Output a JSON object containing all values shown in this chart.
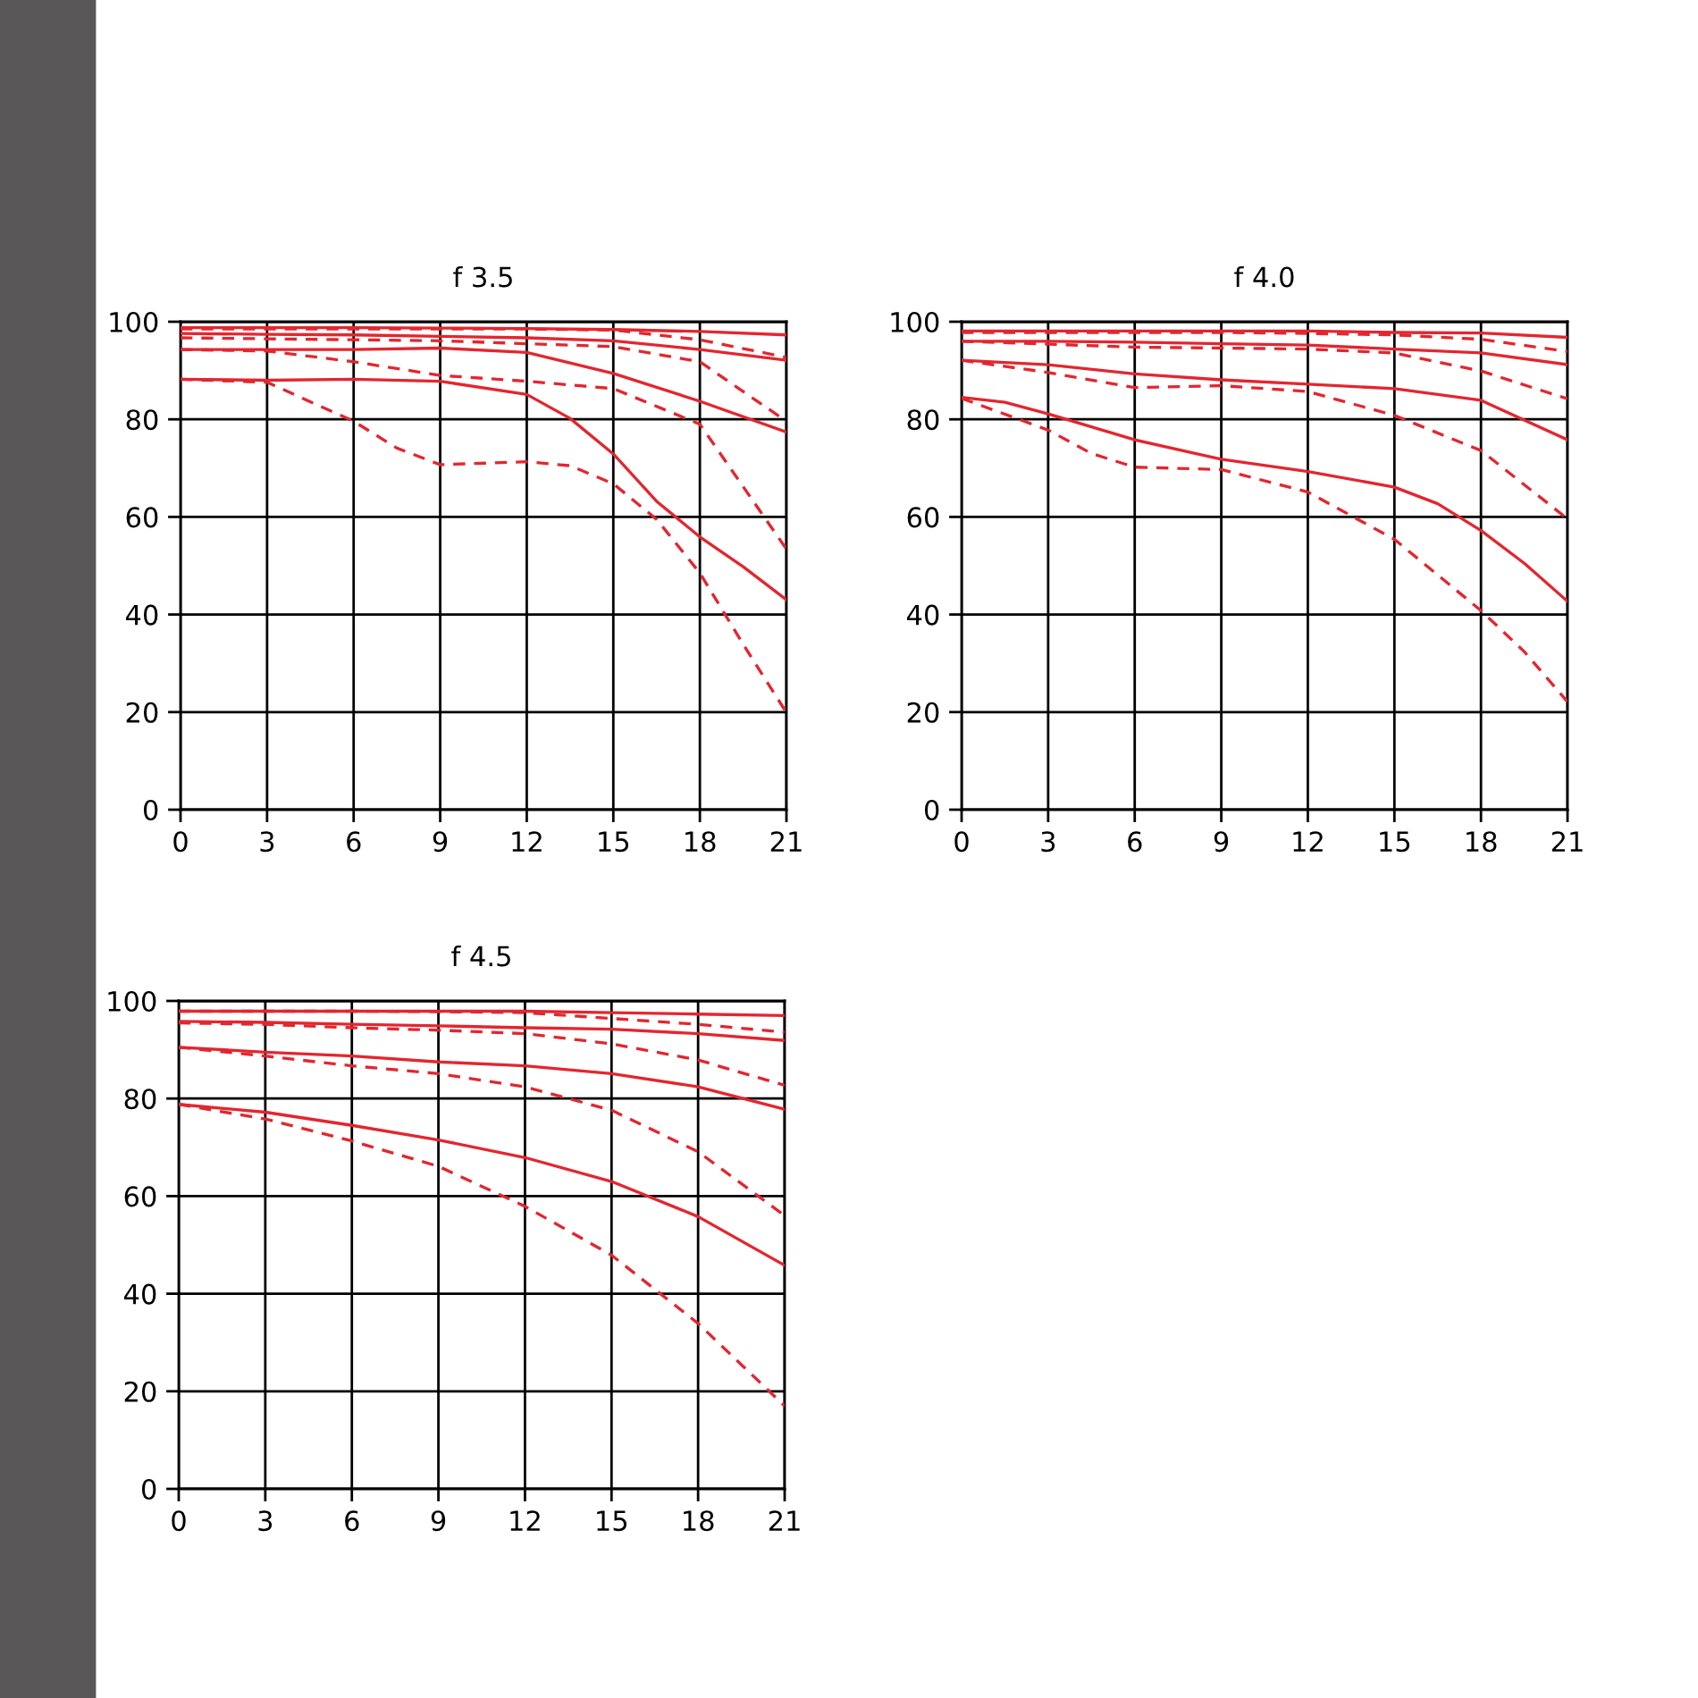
{
  "chart_data": [
    {
      "type": "line",
      "title": "f 3.5",
      "xlim": [
        0,
        21
      ],
      "xticks": [
        0,
        3,
        6,
        9,
        12,
        15,
        18,
        21
      ],
      "ylim": [
        0,
        100
      ],
      "yticks": [
        0,
        20,
        40,
        60,
        80,
        100
      ],
      "grid": true,
      "marker": "none",
      "series": [
        {
          "color": "#e3262f",
          "line_style": "solid",
          "x": [
            0,
            3,
            6,
            9,
            12,
            15,
            18,
            21
          ],
          "values": [
            98.8,
            98.8,
            98.8,
            98.7,
            98.6,
            98.4,
            98,
            97.3
          ]
        },
        {
          "color": "#e3262f",
          "line_style": "dashed",
          "x": [
            0,
            3,
            6,
            9,
            12,
            15,
            18,
            21
          ],
          "values": [
            98.5,
            98.5,
            98.5,
            98.5,
            98.5,
            98.3,
            96.3,
            92.7
          ]
        },
        {
          "color": "#e3262f",
          "line_style": "solid",
          "x": [
            0,
            3,
            6,
            9,
            12,
            15,
            18,
            21
          ],
          "values": [
            97.6,
            97.4,
            97.3,
            97,
            96.7,
            96.1,
            94.3,
            92.1
          ]
        },
        {
          "color": "#e3262f",
          "line_style": "dashed",
          "x": [
            0,
            3,
            6,
            9,
            12,
            15,
            18,
            21
          ],
          "values": [
            96.7,
            96.5,
            96.3,
            96.1,
            95.5,
            94.9,
            91.8,
            79.6
          ]
        },
        {
          "color": "#e3262f",
          "line_style": "solid",
          "x": [
            0,
            3,
            6,
            9,
            12,
            15,
            18,
            21
          ],
          "values": [
            94.3,
            94.3,
            94.3,
            94.6,
            93.7,
            89.4,
            83.7,
            77.4
          ]
        },
        {
          "color": "#e3262f",
          "line_style": "dashed",
          "x": [
            0,
            3,
            6,
            9,
            12,
            15,
            18,
            21
          ],
          "values": [
            94.3,
            94,
            91.8,
            89,
            87.8,
            86.3,
            79,
            53.4
          ]
        },
        {
          "color": "#e3262f",
          "line_style": "solid",
          "x": [
            0,
            3,
            6,
            9,
            12,
            13.5,
            15,
            16.5,
            18,
            19.5,
            21
          ],
          "values": [
            88.2,
            88,
            88.2,
            87.8,
            85.1,
            80.2,
            72.9,
            63.2,
            55.9,
            49.8,
            43
          ]
        },
        {
          "color": "#e3262f",
          "line_style": "dashed",
          "x": [
            0,
            3,
            6,
            7.5,
            9,
            12,
            13.5,
            15,
            16.5,
            18,
            19.5,
            21
          ],
          "values": [
            88.2,
            87.6,
            79.6,
            74.1,
            70.7,
            71.3,
            70.5,
            66.8,
            59.5,
            48.5,
            33.9,
            19.9
          ]
        }
      ]
    },
    {
      "type": "line",
      "title": "f 4.0",
      "xlim": [
        0,
        21
      ],
      "xticks": [
        0,
        3,
        6,
        9,
        12,
        15,
        18,
        21
      ],
      "ylim": [
        0,
        100
      ],
      "yticks": [
        0,
        20,
        40,
        60,
        80,
        100
      ],
      "grid": true,
      "marker": "none",
      "series": [
        {
          "color": "#e3262f",
          "line_style": "solid",
          "x": [
            0,
            3,
            6,
            9,
            12,
            15,
            18,
            21
          ],
          "values": [
            98.1,
            98.1,
            98.1,
            98.1,
            98.1,
            97.8,
            97.7,
            96.8
          ]
        },
        {
          "color": "#e3262f",
          "line_style": "dashed",
          "x": [
            0,
            3,
            6,
            9,
            12,
            15,
            18,
            21
          ],
          "values": [
            97.8,
            97.8,
            97.8,
            97.8,
            97.6,
            97.3,
            96.4,
            93.9
          ]
        },
        {
          "color": "#e3262f",
          "line_style": "solid",
          "x": [
            0,
            3,
            6,
            9,
            12,
            15,
            18,
            21
          ],
          "values": [
            96,
            96,
            95.8,
            95.5,
            95.2,
            94.4,
            93.6,
            91.2
          ]
        },
        {
          "color": "#e3262f",
          "line_style": "dashed",
          "x": [
            0,
            3,
            6,
            9,
            12,
            15,
            18,
            21
          ],
          "values": [
            96,
            95.4,
            94.8,
            94.6,
            94.4,
            93.6,
            89.9,
            84.2
          ]
        },
        {
          "color": "#e3262f",
          "line_style": "solid",
          "x": [
            0,
            3,
            6,
            9,
            12,
            15,
            18,
            21
          ],
          "values": [
            92.1,
            91.2,
            89.3,
            88.1,
            87.2,
            86.3,
            83.9,
            75.8
          ]
        },
        {
          "color": "#e3262f",
          "line_style": "dashed",
          "x": [
            0,
            3,
            6,
            9,
            12,
            15,
            18,
            21
          ],
          "values": [
            92.1,
            89.6,
            86.5,
            86.9,
            85.7,
            80.8,
            73.6,
            59.6
          ]
        },
        {
          "color": "#e3262f",
          "line_style": "solid",
          "x": [
            0,
            1.5,
            3,
            6,
            9,
            12,
            15,
            16.5,
            18,
            19.5,
            21
          ],
          "values": [
            84.5,
            83.5,
            81.1,
            75.8,
            71.8,
            69.3,
            66.1,
            62.7,
            57.2,
            50.5,
            42.7
          ]
        },
        {
          "color": "#e3262f",
          "line_style": "dashed",
          "x": [
            0,
            3,
            4.5,
            6,
            9,
            12,
            15,
            16.5,
            18,
            19.5,
            21
          ],
          "values": [
            84.3,
            77.8,
            73,
            70.2,
            69.7,
            65.1,
            55.4,
            48.1,
            40.8,
            32.4,
            22.1
          ]
        }
      ]
    },
    {
      "type": "line",
      "title": "f 4.5",
      "xlim": [
        0,
        21
      ],
      "xticks": [
        0,
        3,
        6,
        9,
        12,
        15,
        18,
        21
      ],
      "ylim": [
        0,
        100
      ],
      "yticks": [
        0,
        20,
        40,
        60,
        80,
        100
      ],
      "grid": true,
      "marker": "none",
      "series": [
        {
          "color": "#e3262f",
          "line_style": "solid",
          "x": [
            0,
            3,
            6,
            9,
            12,
            15,
            18,
            21
          ],
          "values": [
            97.9,
            97.9,
            97.9,
            97.9,
            97.9,
            97.6,
            97.3,
            97
          ]
        },
        {
          "color": "#e3262f",
          "line_style": "dashed",
          "x": [
            0,
            3,
            6,
            9,
            12,
            15,
            18,
            21
          ],
          "values": [
            97.9,
            97.9,
            97.9,
            97.8,
            97.6,
            96.4,
            95.2,
            93.6
          ]
        },
        {
          "color": "#e3262f",
          "line_style": "solid",
          "x": [
            0,
            3,
            6,
            9,
            12,
            15,
            18,
            21
          ],
          "values": [
            95.8,
            95.6,
            95.2,
            94.9,
            94.5,
            94.2,
            93.3,
            91.9
          ]
        },
        {
          "color": "#e3262f",
          "line_style": "dashed",
          "x": [
            0,
            3,
            6,
            9,
            12,
            15,
            18,
            21
          ],
          "values": [
            95.5,
            95.2,
            94.5,
            94,
            93.3,
            91.2,
            87.9,
            82.7
          ]
        },
        {
          "color": "#e3262f",
          "line_style": "solid",
          "x": [
            0,
            3,
            6,
            9,
            12,
            15,
            18,
            21
          ],
          "values": [
            90.5,
            89.5,
            88.7,
            87.5,
            86.7,
            85.1,
            82.4,
            77.8
          ]
        },
        {
          "color": "#e3262f",
          "line_style": "dashed",
          "x": [
            0,
            3,
            6,
            9,
            12,
            15,
            18,
            21
          ],
          "values": [
            90.5,
            88.7,
            86.7,
            85.1,
            82.4,
            77.6,
            69.1,
            56
          ]
        },
        {
          "color": "#e3262f",
          "line_style": "solid",
          "x": [
            0,
            3,
            6,
            9,
            12,
            15,
            18,
            21
          ],
          "values": [
            78.8,
            77.2,
            74.5,
            71.5,
            67.9,
            63,
            55.8,
            45.8
          ]
        },
        {
          "color": "#e3262f",
          "line_style": "dashed",
          "x": [
            0,
            3,
            6,
            9,
            12,
            15,
            18,
            21
          ],
          "values": [
            78.8,
            75.8,
            71.3,
            66.1,
            57.9,
            47.9,
            33.9,
            17
          ]
        }
      ]
    }
  ]
}
